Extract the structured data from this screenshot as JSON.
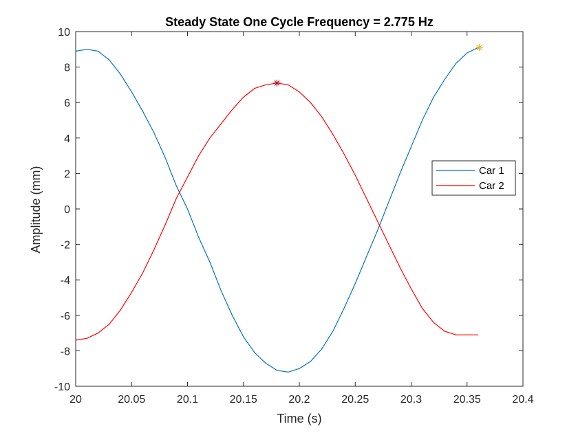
{
  "chart_data": {
    "type": "line",
    "title": "Steady State One Cycle Frequency = 2.775 Hz",
    "xlabel": "Time (s)",
    "ylabel": "Amplitude (mm)",
    "xlim": [
      20,
      20.4
    ],
    "ylim": [
      -10,
      10
    ],
    "xticks": [
      20,
      20.05,
      20.1,
      20.15,
      20.2,
      20.25,
      20.3,
      20.35,
      20.4
    ],
    "xtick_labels": [
      "20",
      "20.05",
      "20.1",
      "20.15",
      "20.2",
      "20.25",
      "20.3",
      "20.35",
      "20.4"
    ],
    "yticks": [
      -10,
      -8,
      -6,
      -4,
      -2,
      0,
      2,
      4,
      6,
      8,
      10
    ],
    "ytick_labels": [
      "-10",
      "-8",
      "-6",
      "-4",
      "-2",
      "0",
      "2",
      "4",
      "6",
      "8",
      "10"
    ],
    "grid": false,
    "legend_position": "right",
    "series": [
      {
        "name": "Car 1",
        "color": "#0072BD",
        "x": [
          20.0,
          20.01,
          20.02,
          20.03,
          20.04,
          20.05,
          20.06,
          20.07,
          20.08,
          20.09,
          20.1,
          20.11,
          20.12,
          20.13,
          20.14,
          20.15,
          20.16,
          20.17,
          20.18,
          20.19,
          20.2,
          20.21,
          20.22,
          20.23,
          20.24,
          20.25,
          20.26,
          20.27,
          20.28,
          20.29,
          20.3,
          20.31,
          20.32,
          20.33,
          20.34,
          20.35,
          20.36
        ],
        "values": [
          8.9,
          9.0,
          8.9,
          8.4,
          7.6,
          6.6,
          5.5,
          4.3,
          2.9,
          1.3,
          0.0,
          -1.6,
          -3.0,
          -4.6,
          -6.0,
          -7.2,
          -8.1,
          -8.7,
          -9.1,
          -9.2,
          -9.0,
          -8.6,
          -7.9,
          -6.9,
          -5.6,
          -4.2,
          -2.7,
          -1.2,
          0.4,
          2.0,
          3.5,
          5.0,
          6.3,
          7.3,
          8.2,
          8.8,
          9.1
        ]
      },
      {
        "name": "Car 2",
        "color": "#FF0000",
        "x": [
          20.0,
          20.01,
          20.02,
          20.03,
          20.04,
          20.05,
          20.06,
          20.07,
          20.08,
          20.09,
          20.1,
          20.11,
          20.12,
          20.13,
          20.14,
          20.15,
          20.16,
          20.17,
          20.18,
          20.19,
          20.2,
          20.21,
          20.22,
          20.23,
          20.24,
          20.25,
          20.26,
          20.27,
          20.28,
          20.29,
          20.3,
          20.31,
          20.32,
          20.33,
          20.34,
          20.35,
          20.36
        ],
        "values": [
          -7.4,
          -7.3,
          -7.0,
          -6.5,
          -5.7,
          -4.7,
          -3.6,
          -2.3,
          -0.9,
          0.6,
          1.8,
          3.0,
          4.0,
          4.8,
          5.6,
          6.3,
          6.8,
          7.0,
          7.1,
          7.0,
          6.6,
          6.0,
          5.2,
          4.2,
          3.1,
          1.9,
          0.6,
          -0.7,
          -2.0,
          -3.3,
          -4.5,
          -5.6,
          -6.4,
          -6.9,
          -7.1,
          -7.1,
          -7.1
        ]
      }
    ],
    "markers": [
      {
        "x": 20.18,
        "y": 7.1,
        "color": "#B2182B"
      },
      {
        "x": 20.361,
        "y": 9.1,
        "color": "#EDB120"
      }
    ]
  }
}
